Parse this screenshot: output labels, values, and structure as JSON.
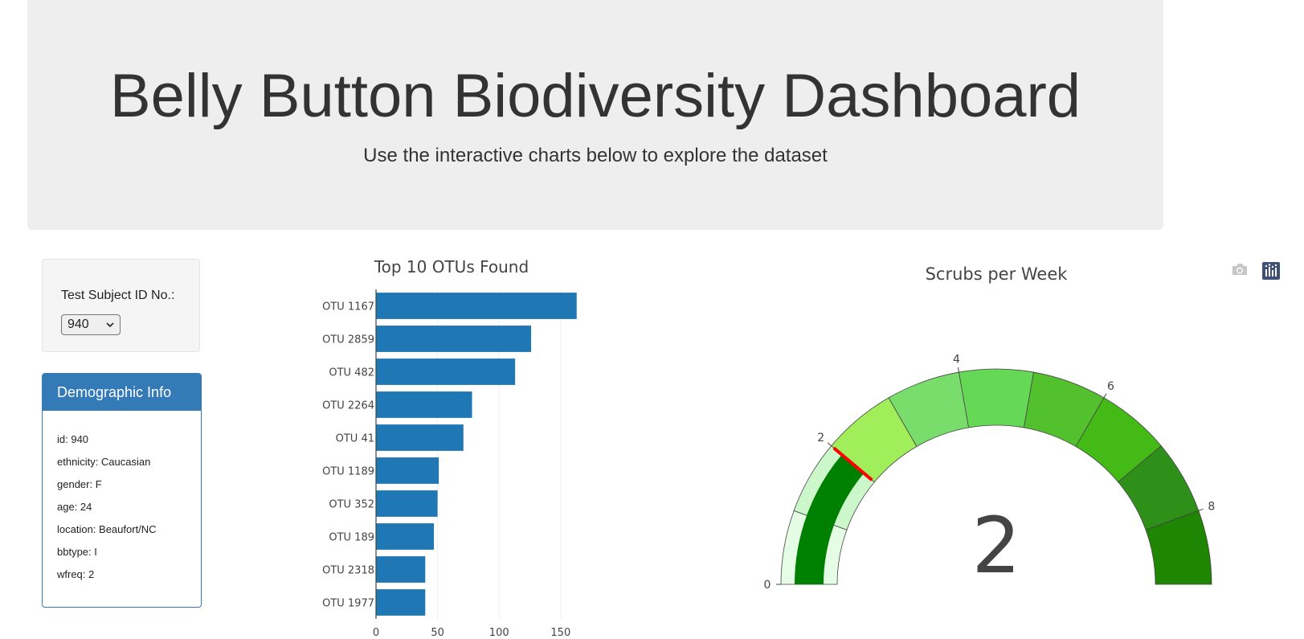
{
  "header": {
    "title": "Belly Button Biodiversity Dashboard",
    "subtitle": "Use the interactive charts below to explore the dataset"
  },
  "selector": {
    "label": "Test Subject ID No.:",
    "value": "940"
  },
  "demographics": {
    "title": "Demographic Info",
    "rows": [
      "id: 940",
      "ethnicity: Caucasian",
      "gender: F",
      "age: 24",
      "location: Beaufort/NC",
      "bbtype: I",
      "wfreq: 2"
    ]
  },
  "modebar": {
    "icons": [
      "camera-icon",
      "plotly-logo-icon"
    ],
    "colors": {
      "camera": "#c6c6c6",
      "plotly": "#3f4f75"
    }
  },
  "chart_data": [
    {
      "type": "bar",
      "orientation": "horizontal",
      "title": "Top 10 OTUs Found",
      "categories": [
        "OTU 1167",
        "OTU 2859",
        "OTU 482",
        "OTU 2264",
        "OTU 41",
        "OTU 1189",
        "OTU 352",
        "OTU 189",
        "OTU 2318",
        "OTU 1977"
      ],
      "values": [
        163,
        126,
        113,
        78,
        71,
        51,
        50,
        47,
        40,
        40
      ],
      "xticks": [
        0,
        50,
        100,
        150
      ],
      "xlim": [
        0,
        171
      ],
      "grid": true,
      "color": "#1f77b4"
    },
    {
      "type": "gauge",
      "title": "Scrubs per Week",
      "value": 2,
      "value_label": "2",
      "range": [
        0,
        9
      ],
      "ticks": [
        0,
        2,
        4,
        6,
        8
      ],
      "steps": [
        {
          "range": [
            0,
            1
          ],
          "color": "#e5fce5"
        },
        {
          "range": [
            1,
            2
          ],
          "color": "#cbf7cb"
        },
        {
          "range": [
            2,
            3
          ],
          "color": "#a0ee5a"
        },
        {
          "range": [
            3,
            4
          ],
          "color": "#78dd6a"
        },
        {
          "range": [
            4,
            5
          ],
          "color": "#65d955"
        },
        {
          "range": [
            5,
            6
          ],
          "color": "#53c02e"
        },
        {
          "range": [
            6,
            7
          ],
          "color": "#43ba15"
        },
        {
          "range": [
            7,
            8
          ],
          "color": "#2e9018"
        },
        {
          "range": [
            8,
            9
          ],
          "color": "#1e8603"
        }
      ],
      "bar_color": "#008000",
      "threshold": {
        "value": 2,
        "color": "#ff0000"
      }
    }
  ]
}
